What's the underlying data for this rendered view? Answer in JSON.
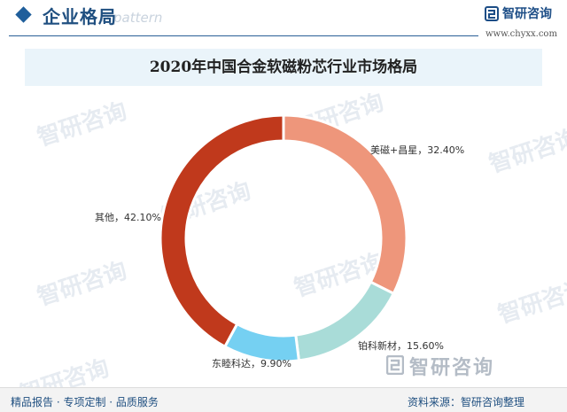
{
  "header": {
    "title": "企业格局",
    "subtitle": "e pattern"
  },
  "logo": {
    "name": "智研咨询",
    "url": "www.chyxx.com"
  },
  "watermark": {
    "text": "智研咨询"
  },
  "footer": {
    "left": "精品报告 · 专项定制 · 品质服务",
    "right": "资料来源：智研咨询整理",
    "brand": "智研咨询"
  },
  "colors": {
    "accent": "#1f4f80",
    "title_band": "#eaf4fa"
  },
  "chart_data": {
    "type": "pie",
    "donut": true,
    "title": "2020年中国合金软磁粉芯行业市场格局",
    "unit": "%",
    "slices": [
      {
        "label": "美磁+昌星",
        "value": 32.4,
        "display": "美磁+昌星，32.40%",
        "color": "#ee967b"
      },
      {
        "label": "铂科新材",
        "value": 15.6,
        "display": "铂科新材，15.60%",
        "color": "#a9dcd8"
      },
      {
        "label": "东睦科达",
        "value": 9.9,
        "display": "东睦科达，9.90%",
        "color": "#75d0f2"
      },
      {
        "label": "其他",
        "value": 42.1,
        "display": "其他，42.10%",
        "color": "#c0391c"
      }
    ]
  }
}
